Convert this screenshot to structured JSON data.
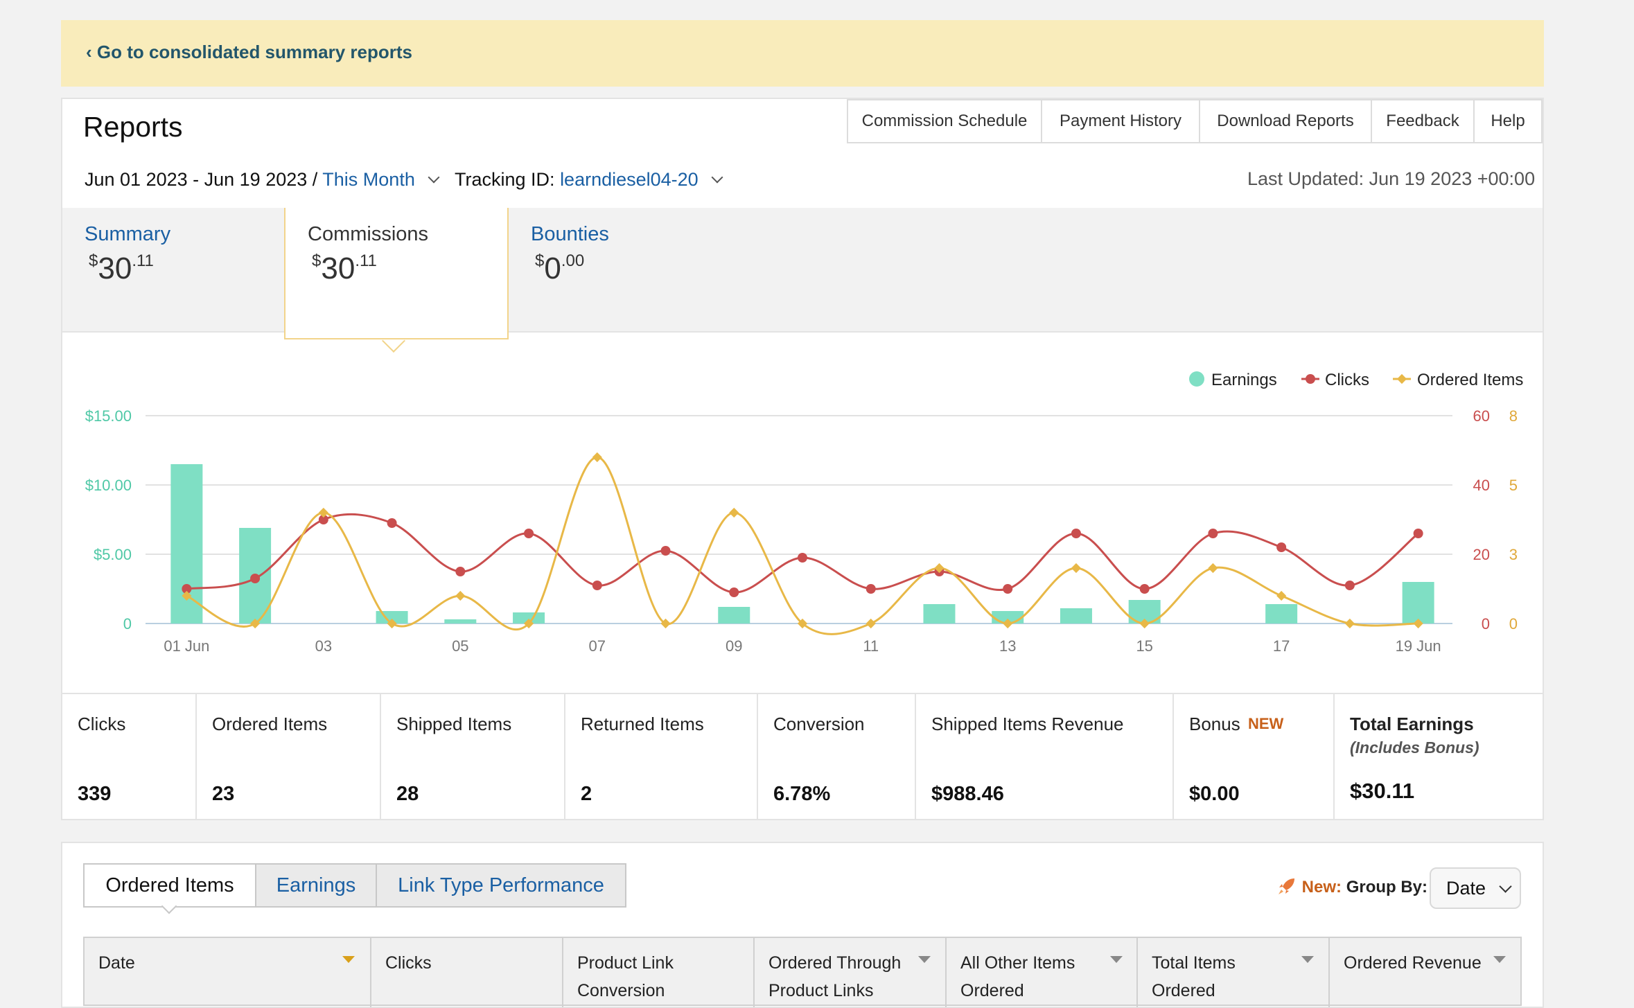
{
  "banner": {
    "link_text": "‹ Go to consolidated summary reports"
  },
  "header": {
    "title": "Reports",
    "nav": [
      "Commission Schedule",
      "Payment History",
      "Download Reports",
      "Feedback",
      "Help"
    ]
  },
  "filters": {
    "date_range": "Jun 01 2023 - Jun 19 2023 /",
    "period": "This Month",
    "tracking_label": "Tracking ID:",
    "tracking_id": "learndiesel04-20",
    "last_updated": "Last Updated: Jun 19 2023 +00:00"
  },
  "tabs": [
    {
      "label": "Summary",
      "currency": "$",
      "whole": "30",
      "cents": ".11"
    },
    {
      "label": "Commissions",
      "currency": "$",
      "whole": "30",
      "cents": ".11"
    },
    {
      "label": "Bounties",
      "currency": "$",
      "whole": "0",
      "cents": ".00"
    }
  ],
  "chart_data": {
    "type": "bar+line",
    "legend": [
      "Earnings",
      "Clicks",
      "Ordered Items"
    ],
    "legend_position": "top-right",
    "grid": true,
    "colors": {
      "earnings": "#7fdfc4",
      "clicks": "#c94e4e",
      "ordered_items": "#e8b847"
    },
    "x_tick_labels": [
      "01 Jun",
      "03",
      "05",
      "07",
      "09",
      "11",
      "13",
      "15",
      "17",
      "19 Jun"
    ],
    "x_tick_days": [
      1,
      3,
      5,
      7,
      9,
      11,
      13,
      15,
      17,
      19
    ],
    "y_left_ticks": [
      "0",
      "$5.00",
      "$10.00",
      "$15.00"
    ],
    "y_left_range": [
      0,
      15
    ],
    "y_clicks_ticks": [
      "0",
      "20",
      "40",
      "60"
    ],
    "y_clicks_range": [
      0,
      60
    ],
    "y_items_ticks": [
      "0",
      "3",
      "5",
      "8"
    ],
    "y_items_range": [
      0,
      7.5
    ],
    "days": [
      1,
      2,
      3,
      4,
      5,
      6,
      7,
      8,
      9,
      10,
      11,
      12,
      13,
      14,
      15,
      16,
      17,
      18,
      19
    ],
    "series": [
      {
        "name": "Earnings",
        "axis": "left",
        "values": [
          11.5,
          6.9,
          0,
          0.9,
          0.3,
          0.8,
          0,
          0,
          1.2,
          0,
          0,
          1.4,
          0.9,
          1.1,
          1.7,
          0,
          1.4,
          0,
          3.0
        ]
      },
      {
        "name": "Clicks",
        "axis": "clicks",
        "values": [
          10,
          13,
          30,
          29,
          15,
          26,
          11,
          21,
          9,
          19,
          10,
          15,
          10,
          26,
          10,
          26,
          22,
          11,
          26
        ]
      },
      {
        "name": "Ordered Items",
        "axis": "items",
        "values": [
          1,
          0,
          4,
          0,
          1,
          0,
          6,
          0,
          4,
          0,
          0,
          2,
          0,
          2,
          0,
          2,
          1,
          0,
          0
        ]
      }
    ]
  },
  "metrics": [
    {
      "label": "Clicks",
      "value": "339"
    },
    {
      "label": "Ordered Items",
      "value": "23"
    },
    {
      "label": "Shipped Items",
      "value": "28"
    },
    {
      "label": "Returned Items",
      "value": "2"
    },
    {
      "label": "Conversion",
      "value": "6.78%"
    },
    {
      "label": "Shipped Items Revenue",
      "value": "$988.46"
    },
    {
      "label": "Bonus",
      "badge": "NEW",
      "value": "$0.00"
    },
    {
      "label": "Total Earnings",
      "sublabel": "(Includes Bonus)",
      "value": "$30.11"
    }
  ],
  "report_tabs": [
    "Ordered Items",
    "Earnings",
    "Link Type Performance"
  ],
  "group_by": {
    "new_label": "New:",
    "label": "Group By:",
    "selected": "Date"
  },
  "table": {
    "columns": [
      [
        "Date",
        ""
      ],
      [
        "Clicks",
        ""
      ],
      [
        "Product Link",
        "Conversion"
      ],
      [
        "Ordered Through",
        "Product Links"
      ],
      [
        "All Other Items",
        "Ordered"
      ],
      [
        "Total Items",
        "Ordered"
      ],
      [
        "Ordered Revenue",
        ""
      ]
    ]
  }
}
